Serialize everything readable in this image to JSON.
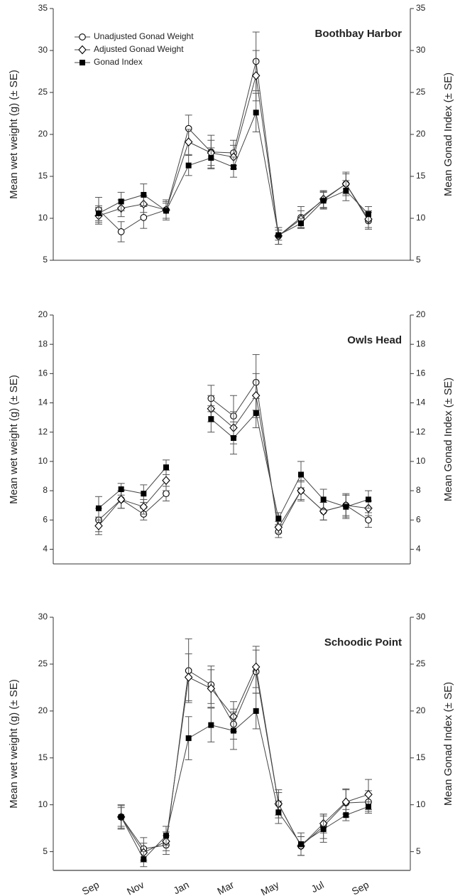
{
  "chart_data": [
    {
      "type": "line",
      "title": "Boothbay Harbor",
      "y_label": "Mean wet weight (g) (± SE)",
      "y2_label": "Mean Gonad Index (± SE)",
      "categories": [
        null,
        null,
        null,
        null,
        null,
        null,
        null,
        null,
        null,
        null,
        null,
        null,
        null
      ],
      "ylim": [
        5,
        35
      ],
      "yticks": [
        5,
        10,
        15,
        20,
        25,
        30,
        35
      ],
      "y2lim": [
        5,
        35
      ],
      "y2ticks": [
        5,
        10,
        15,
        20,
        25,
        30,
        35
      ],
      "legend": "upper left",
      "series": [
        {
          "name": "Unadjusted Gonad Weight",
          "color": "#000000",
          "marker": "circle-open",
          "values": [
            11.0,
            8.4,
            10.1,
            11.0,
            20.7,
            17.9,
            17.8,
            28.7,
            7.9,
            10.1,
            12.2,
            14.1,
            9.7
          ],
          "errors": [
            1.5,
            1.2,
            1.3,
            1.2,
            1.6,
            2.0,
            1.5,
            3.5,
            1.0,
            1.3,
            1.0,
            1.4,
            1.0
          ]
        },
        {
          "name": "Adjusted Gonad Weight",
          "color": "#000000",
          "marker": "diamond-open",
          "values": [
            10.3,
            11.2,
            11.7,
            11.0,
            19.1,
            17.8,
            17.3,
            27.0,
            7.9,
            9.9,
            12.3,
            14.1,
            9.9
          ],
          "errors": [
            1.0,
            1.0,
            1.0,
            1.0,
            1.5,
            1.5,
            1.4,
            3.0,
            1.0,
            1.0,
            1.0,
            1.2,
            1.0
          ]
        },
        {
          "name": "Gonad Index",
          "color": "#000000",
          "marker": "square-filled",
          "axis": "y2",
          "values": [
            10.6,
            12.0,
            12.8,
            10.9,
            16.3,
            17.2,
            16.1,
            22.6,
            8.0,
            9.4,
            12.1,
            13.3,
            10.5
          ],
          "errors": [
            0.9,
            1.1,
            1.3,
            0.9,
            1.2,
            1.2,
            1.2,
            2.3,
            0.6,
            0.6,
            1.0,
            1.2,
            0.9
          ]
        }
      ]
    },
    {
      "type": "line",
      "title": "Owls Head",
      "y_label": "Mean wet weight (g) (± SE)",
      "y2_label": "Mean Gonad Index (± SE)",
      "categories": [
        null,
        null,
        null,
        null,
        null,
        null,
        null,
        null,
        null,
        null,
        null,
        null,
        null
      ],
      "ylim": [
        3,
        20
      ],
      "yticks": [
        4,
        6,
        8,
        10,
        12,
        14,
        16,
        18,
        20
      ],
      "y2lim": [
        3,
        20
      ],
      "y2ticks": [
        4,
        6,
        8,
        10,
        12,
        14,
        16,
        18,
        20
      ],
      "series": [
        {
          "color": "#000000",
          "marker": "circle-open",
          "values": [
            6.0,
            7.4,
            6.4,
            7.8,
            null,
            14.3,
            13.1,
            15.4,
            5.2,
            8.0,
            6.6,
            7.0,
            6.0
          ],
          "errors": [
            0.8,
            0.6,
            0.4,
            0.5,
            null,
            0.9,
            1.4,
            1.9,
            0.4,
            0.7,
            0.6,
            0.8,
            0.5
          ]
        },
        {
          "color": "#000000",
          "marker": "diamond-open",
          "values": [
            5.6,
            7.4,
            6.9,
            8.7,
            null,
            13.6,
            12.3,
            14.5,
            5.5,
            8.0,
            6.6,
            7.0,
            6.8
          ],
          "errors": [
            0.6,
            0.6,
            0.5,
            0.7,
            null,
            0.9,
            1.1,
            1.5,
            0.4,
            0.6,
            0.6,
            0.7,
            0.5
          ]
        },
        {
          "color": "#000000",
          "marker": "square-filled",
          "axis": "y2",
          "values": [
            6.8,
            8.1,
            7.8,
            9.6,
            null,
            12.9,
            11.6,
            13.3,
            6.1,
            9.1,
            7.4,
            6.9,
            7.4
          ],
          "errors": [
            0.8,
            0.4,
            0.6,
            0.5,
            null,
            0.9,
            1.1,
            1.0,
            0.4,
            0.9,
            0.7,
            0.8,
            0.6
          ]
        }
      ]
    },
    {
      "type": "line",
      "title": "Schoodic Point",
      "y_label": "Mean wet weight (g) (± SE)",
      "y2_label": "Mean Gonad Index (± SE)",
      "categories": [
        "Sep",
        null,
        "Nov",
        null,
        "Jan",
        null,
        "Mar",
        null,
        "May",
        null,
        "Jul",
        null,
        "Sep"
      ],
      "ylim": [
        3,
        30
      ],
      "yticks": [
        5,
        10,
        15,
        20,
        25,
        30
      ],
      "y2lim": [
        3,
        30
      ],
      "y2ticks": [
        5,
        10,
        15,
        20,
        25,
        30
      ],
      "series": [
        {
          "color": "#000000",
          "marker": "circle-open",
          "values": [
            null,
            8.7,
            5.3,
            5.7,
            24.3,
            22.8,
            18.6,
            24.2,
            10.1,
            5.6,
            7.7,
            10.2,
            10.3
          ],
          "errors": [
            null,
            1.2,
            1.2,
            1.0,
            3.4,
            2.0,
            1.6,
            2.3,
            1.5,
            1.0,
            1.3,
            1.5,
            1.2
          ]
        },
        {
          "color": "#000000",
          "marker": "diamond-open",
          "values": [
            null,
            8.7,
            4.9,
            6.1,
            23.6,
            22.4,
            19.4,
            24.7,
            10.1,
            5.6,
            8.0,
            10.3,
            11.1
          ],
          "errors": [
            null,
            1.0,
            1.0,
            1.0,
            2.5,
            2.0,
            1.6,
            2.2,
            1.2,
            1.0,
            1.0,
            1.3,
            1.6
          ]
        },
        {
          "color": "#000000",
          "marker": "square-filled",
          "axis": "y2",
          "values": [
            null,
            8.7,
            4.2,
            6.7,
            17.1,
            18.5,
            17.9,
            20.0,
            9.2,
            5.8,
            7.4,
            8.9,
            9.8
          ],
          "errors": [
            null,
            1.3,
            0.8,
            1.0,
            2.3,
            1.8,
            2.0,
            1.9,
            1.2,
            1.2,
            1.4,
            0.6,
            0.5
          ]
        }
      ]
    }
  ]
}
